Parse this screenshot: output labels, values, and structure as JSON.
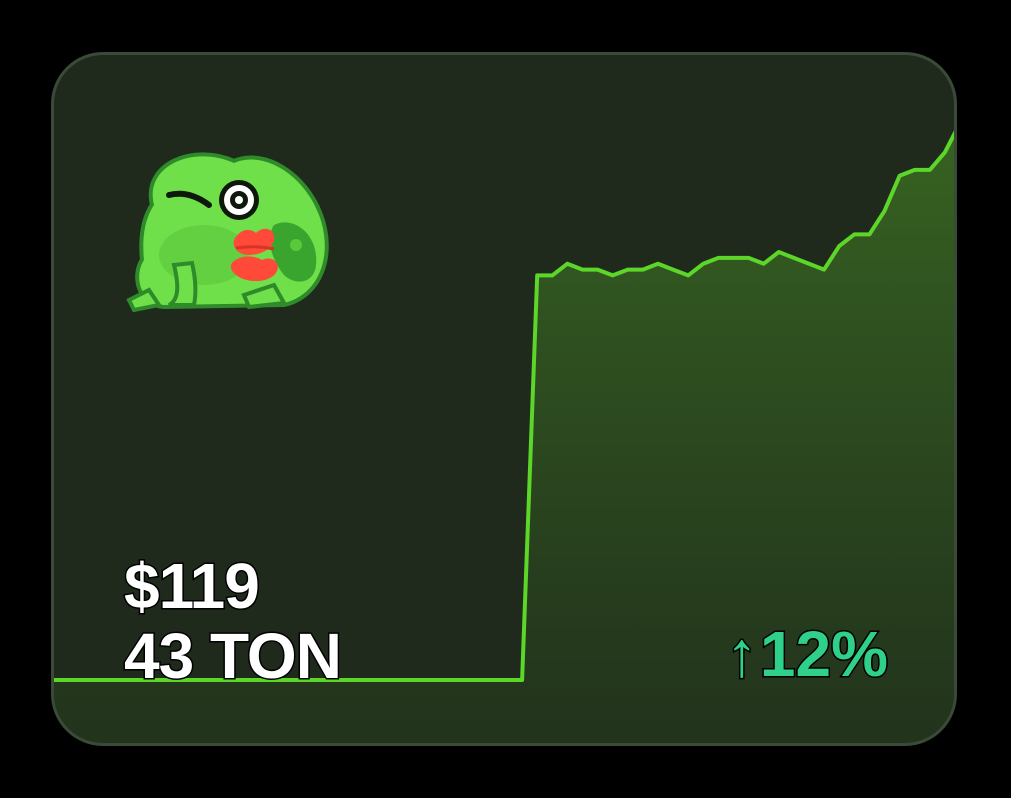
{
  "card": {
    "price_usd": "$119",
    "price_ton": "43 TON",
    "change": {
      "arrow": "↑",
      "value": "12%",
      "direction": "up"
    }
  },
  "icons": {
    "avatar": "frog-sticker-icon",
    "change_arrow": "arrow-up-icon"
  },
  "colors": {
    "background": "#1f2a1d",
    "line": "#5bd629",
    "area": "#2f4a1f",
    "change_text": "#2fd08a",
    "price_text": "#ffffff"
  },
  "chart_data": {
    "type": "area",
    "x": [
      0,
      1,
      2,
      3,
      4,
      5,
      6,
      7,
      8,
      9,
      10,
      11,
      12,
      13,
      14,
      15,
      16,
      17,
      18,
      19,
      20,
      21,
      22,
      23,
      24,
      25,
      26,
      27,
      28,
      29,
      30,
      31,
      32,
      33,
      34,
      35,
      36,
      37,
      38,
      39,
      40,
      41,
      42,
      43,
      44,
      45,
      46,
      47,
      48,
      49,
      50,
      51,
      52,
      53,
      54,
      55,
      56,
      57,
      58,
      59,
      60
    ],
    "values": [
      0,
      0,
      0,
      0,
      0,
      0,
      0,
      0,
      0,
      0,
      0,
      0,
      0,
      0,
      0,
      0,
      0,
      0,
      0,
      0,
      0,
      0,
      0,
      0,
      0,
      0,
      0,
      0,
      0,
      0,
      0,
      0,
      69,
      69,
      71,
      70,
      70,
      69,
      70,
      70,
      71,
      70,
      69,
      71,
      72,
      72,
      72,
      71,
      73,
      72,
      71,
      70,
      74,
      76,
      76,
      80,
      86,
      87,
      87,
      90,
      95
    ],
    "grid": false,
    "legend": "none"
  }
}
